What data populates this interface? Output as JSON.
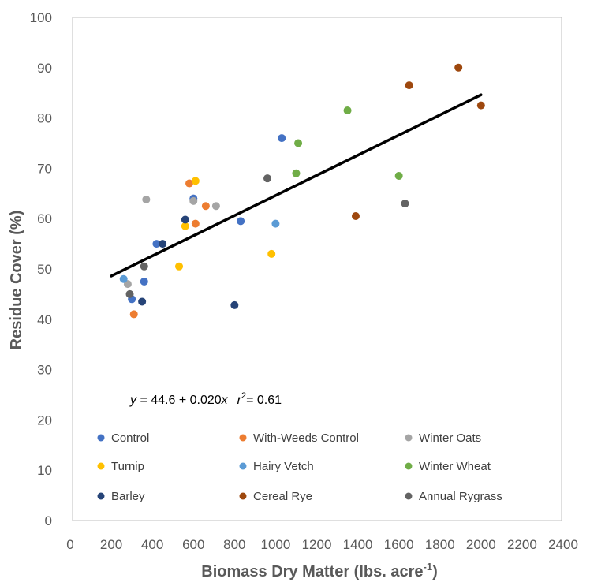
{
  "chart_data": {
    "type": "scatter",
    "xlabel": "Biomass Dry Matter (lbs. acre",
    "xlabel_sup": "-1",
    "xlabel_end": ")",
    "ylabel": "Residue Cover (%)",
    "xlim": [
      0,
      2400
    ],
    "ylim": [
      0,
      100
    ],
    "x_ticks": [
      0,
      200,
      400,
      600,
      800,
      1000,
      1200,
      1400,
      1600,
      1800,
      2000,
      2200,
      2400
    ],
    "y_ticks": [
      0,
      10,
      20,
      30,
      40,
      50,
      60,
      70,
      80,
      90,
      100
    ],
    "grid": false,
    "legend_position": "bottom-inside",
    "annotation": {
      "y_var": "y",
      "eq": " = 44.6 + 0.020",
      "x_var": "x",
      "r_var": "r",
      "r_sup": "2",
      "r_val": "= 0.61"
    },
    "trendline": {
      "intercept": 44.6,
      "slope": 0.02,
      "x_range": [
        200,
        2000
      ],
      "color": "#000000"
    },
    "series": [
      {
        "name": "Control",
        "color": "#4472C4",
        "points": [
          [
            300,
            44
          ],
          [
            360,
            47.5
          ],
          [
            420,
            55
          ],
          [
            600,
            64
          ],
          [
            830,
            59.5
          ],
          [
            1030,
            76
          ]
        ]
      },
      {
        "name": "With-Weeds Control",
        "color": "#ED7D31",
        "points": [
          [
            310,
            41
          ],
          [
            580,
            67
          ],
          [
            610,
            59
          ],
          [
            660,
            62.5
          ]
        ]
      },
      {
        "name": "Winter Oats",
        "color": "#A5A5A5",
        "points": [
          [
            280,
            47
          ],
          [
            370,
            63.8
          ],
          [
            600,
            63.5
          ],
          [
            710,
            62.5
          ]
        ]
      },
      {
        "name": "Turnip",
        "color": "#FFC000",
        "points": [
          [
            530,
            50.5
          ],
          [
            560,
            58.5
          ],
          [
            610,
            67.5
          ],
          [
            980,
            53
          ]
        ]
      },
      {
        "name": "Hairy Vetch",
        "color": "#5B9BD5",
        "points": [
          [
            260,
            48
          ],
          [
            1000,
            59
          ]
        ]
      },
      {
        "name": "Winter Wheat",
        "color": "#70AD47",
        "points": [
          [
            1100,
            69
          ],
          [
            1110,
            75
          ],
          [
            1350,
            81.5
          ],
          [
            1600,
            68.5
          ]
        ]
      },
      {
        "name": "Barley",
        "color": "#264478",
        "points": [
          [
            350,
            43.5
          ],
          [
            450,
            55
          ],
          [
            560,
            59.8
          ],
          [
            800,
            42.8
          ]
        ]
      },
      {
        "name": "Cereal Rye",
        "color": "#9E480E",
        "points": [
          [
            1390,
            60.5
          ],
          [
            1650,
            86.5
          ],
          [
            1890,
            90
          ],
          [
            2000,
            82.5
          ]
        ]
      },
      {
        "name": "Annual Rygrass",
        "color": "#636363",
        "points": [
          [
            290,
            45
          ],
          [
            360,
            50.5
          ],
          [
            960,
            68
          ],
          [
            1630,
            63
          ]
        ]
      }
    ]
  }
}
